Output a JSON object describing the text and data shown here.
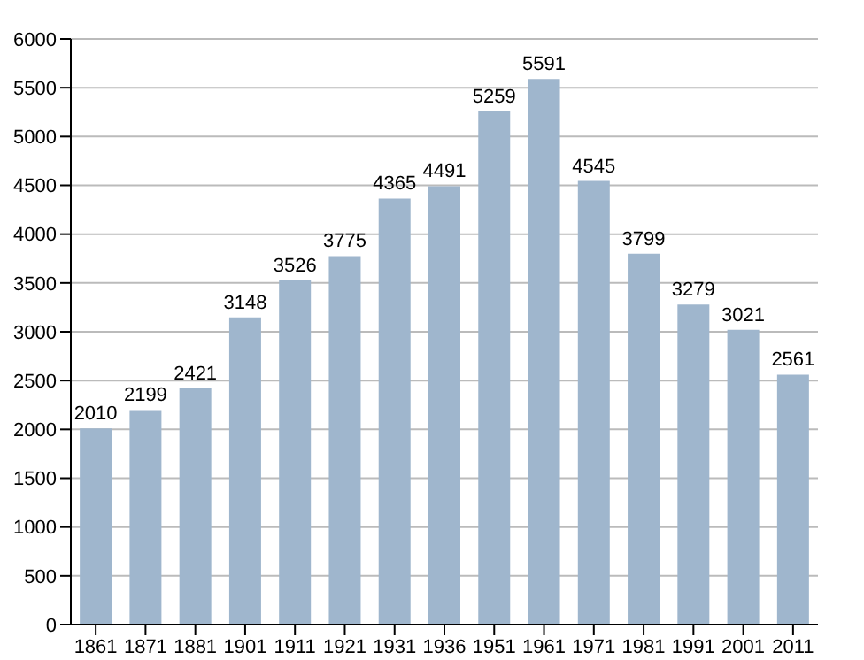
{
  "chart_data": {
    "type": "bar",
    "categories": [
      "1861",
      "1871",
      "1881",
      "1901",
      "1911",
      "1921",
      "1931",
      "1936",
      "1951",
      "1961",
      "1971",
      "1981",
      "1991",
      "2001",
      "2011"
    ],
    "values": [
      2010,
      2199,
      2421,
      3148,
      3526,
      3775,
      4365,
      4491,
      5259,
      5591,
      4545,
      3799,
      3279,
      3021,
      2561
    ],
    "color": "#9fb6cd",
    "ylim": [
      0,
      6000
    ],
    "yticks": [
      0,
      500,
      1000,
      1500,
      2000,
      2500,
      3000,
      3500,
      4000,
      4500,
      5000,
      5500,
      6000
    ],
    "grid": "y",
    "data_labels": true
  }
}
